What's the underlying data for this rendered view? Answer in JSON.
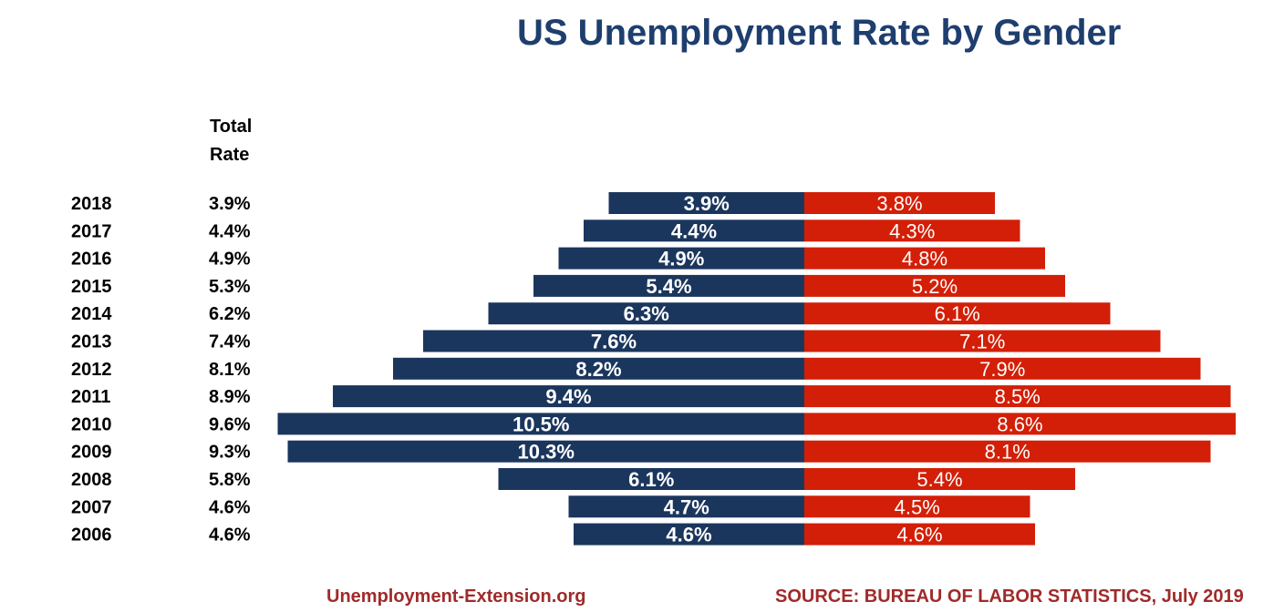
{
  "title": "US Unemployment Rate by Gender",
  "rate_header": [
    "Total",
    "Rate"
  ],
  "footer": {
    "site": "Unemployment-Extension.org",
    "source": "SOURCE: BUREAU OF LABOR STATISTICS, July 2019"
  },
  "colors": {
    "title": "#1e3e6e",
    "left_series": "#1b365d",
    "right_series": "#d31f07",
    "footer": "#a02a2a"
  },
  "chart_data": {
    "type": "bar",
    "orientation": "horizontal-diverging",
    "categories": [
      "2018",
      "2017",
      "2016",
      "2015",
      "2014",
      "2013",
      "2012",
      "2011",
      "2010",
      "2009",
      "2008",
      "2007",
      "2006"
    ],
    "total_rate": [
      "3.9%",
      "4.4%",
      "4.9%",
      "5.3%",
      "6.2%",
      "7.4%",
      "8.1%",
      "8.9%",
      "9.6%",
      "9.3%",
      "5.8%",
      "4.6%",
      "4.6%"
    ],
    "series": [
      {
        "values": [
          3.9,
          4.4,
          4.9,
          5.4,
          6.3,
          7.6,
          8.2,
          9.4,
          10.5,
          10.3,
          6.1,
          4.7,
          4.6
        ],
        "labels": [
          "3.9%",
          "4.4%",
          "4.9%",
          "5.4%",
          "6.3%",
          "7.6%",
          "8.2%",
          "9.4%",
          "10.5%",
          "10.3%",
          "6.1%",
          "4.7%",
          "4.6%"
        ]
      },
      {
        "values": [
          3.8,
          4.3,
          4.8,
          5.2,
          6.1,
          7.1,
          7.9,
          8.5,
          8.6,
          8.1,
          5.4,
          4.5,
          4.6
        ],
        "labels": [
          "3.8%",
          "4.3%",
          "4.8%",
          "5.2%",
          "6.1%",
          "7.1%",
          "7.9%",
          "8.5%",
          "8.6%",
          "8.1%",
          "5.4%",
          "4.5%",
          "4.6%"
        ]
      }
    ],
    "xlim": [
      0,
      10.5
    ],
    "grid": false,
    "legend": "none"
  }
}
